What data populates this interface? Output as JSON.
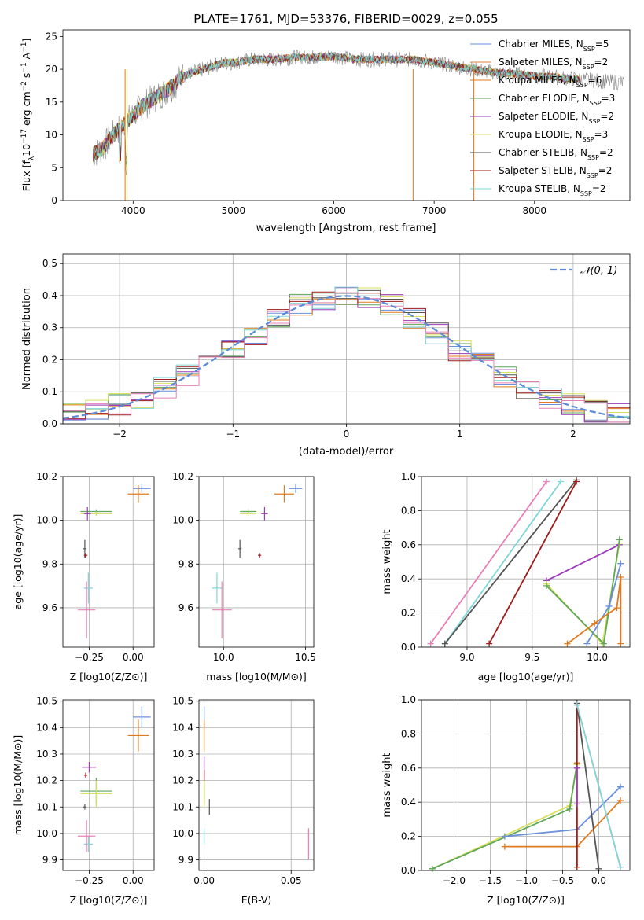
{
  "colors": {
    "chabrier_miles": "#6a8fdc",
    "salpeter_miles": "#e0803c",
    "kroupa_miles": "#e07a1f",
    "chabrier_elodie": "#5fa65a",
    "salpeter_elodie": "#9b3cb8",
    "kroupa_elodie": "#d8e060",
    "chabrier_stelib": "#555555",
    "salpeter_stelib": "#a01a1a",
    "kroupa_stelib": "#7fd6d6",
    "pink": "#e880b8",
    "grey_data": "#888888"
  },
  "chart_data": [
    {
      "id": "spectrum",
      "type": "line",
      "title": "PLATE=1761, MJD=53376, FIBERID=0029, z=0.055",
      "xlabel": "wavelength [Angstrom, rest frame]",
      "ylabel": "Flux [f_λ10^-17 erg cm^-2 s^-1 A^-1]",
      "xlim": [
        3300,
        8950
      ],
      "ylim": [
        0,
        26
      ],
      "xticks": [
        "4000",
        "5000",
        "6000",
        "7000",
        "8000"
      ],
      "yticks": [
        "0",
        "5",
        "10",
        "15",
        "20",
        "25"
      ],
      "envelope_x": [
        3600,
        3700,
        3800,
        3900,
        4000,
        4100,
        4200,
        4300,
        4400,
        4500,
        4600,
        4700,
        4800,
        4900,
        5000,
        5200,
        5400,
        5600,
        5800,
        6000,
        6200,
        6400,
        6600,
        6800,
        7000,
        7200,
        7400,
        7600,
        7800,
        8000,
        8200,
        8400,
        8600,
        8800
      ],
      "envelope_y": [
        7,
        8,
        10,
        11.5,
        13,
        14.5,
        15.5,
        16.5,
        17.5,
        19,
        19.5,
        20,
        20.5,
        21,
        21,
        21.5,
        21.5,
        21.8,
        21.8,
        22,
        21.5,
        21.5,
        21.5,
        21.5,
        21,
        20.5,
        20,
        19.5,
        19.3,
        19,
        18.8,
        18.5,
        18.3,
        18
      ],
      "legend": [
        {
          "label": "Chabrier MILES, N",
          "sub": "SSP",
          "n": "=5",
          "color": "#6a8fdc"
        },
        {
          "label": "Salpeter MILES, N",
          "sub": "SSP",
          "n": "=2",
          "color": "#e0803c"
        },
        {
          "label": "Kroupa MILES, N",
          "sub": "SSP",
          "n": "=6",
          "color": "#e07a1f"
        },
        {
          "label": "Chabrier ELODIE, N",
          "sub": "SSP",
          "n": "=3",
          "color": "#5fa65a"
        },
        {
          "label": "Salpeter ELODIE, N",
          "sub": "SSP",
          "n": "=2",
          "color": "#9b3cb8"
        },
        {
          "label": "Kroupa ELODIE, N",
          "sub": "SSP",
          "n": "=3",
          "color": "#d8e060"
        },
        {
          "label": "Chabrier STELIB, N",
          "sub": "SSP",
          "n": "=2",
          "color": "#555555"
        },
        {
          "label": "Salpeter STELIB, N",
          "sub": "SSP",
          "n": "=2",
          "color": "#a01a1a"
        },
        {
          "label": "Kroupa STELIB, N",
          "sub": "SSP",
          "n": "=2",
          "color": "#7fd6d6"
        }
      ]
    },
    {
      "id": "residuals",
      "type": "histogram",
      "xlabel": "(data-model)/error",
      "ylabel": "Normed distribution",
      "xlim": [
        -2.5,
        2.5
      ],
      "ylim": [
        0,
        0.53
      ],
      "xticks": [
        "−2",
        "−1",
        "0",
        "1",
        "2"
      ],
      "yticks": [
        "0.0",
        "0.1",
        "0.2",
        "0.3",
        "0.4",
        "0.5"
      ],
      "legend": "𝒩(0, 1)",
      "bin_edges": [
        -2.5,
        -2.3,
        -2.1,
        -1.9,
        -1.7,
        -1.5,
        -1.3,
        -1.1,
        -0.9,
        -0.7,
        -0.5,
        -0.3,
        -0.1,
        0.1,
        0.3,
        0.5,
        0.7,
        0.9,
        1.1,
        1.3,
        1.5,
        1.7,
        1.9,
        2.1,
        2.3,
        2.5
      ],
      "base_profile": [
        0.03,
        0.04,
        0.06,
        0.08,
        0.11,
        0.15,
        0.19,
        0.23,
        0.28,
        0.33,
        0.37,
        0.39,
        0.4,
        0.39,
        0.37,
        0.33,
        0.28,
        0.23,
        0.19,
        0.15,
        0.11,
        0.08,
        0.06,
        0.04,
        0.03
      ]
    },
    {
      "id": "age_vs_Z",
      "type": "scatter",
      "xlabel": "Z [log10(Z/Z⊙)]",
      "ylabel": "age [log10(age/yr)]",
      "xlim": [
        -0.4,
        0.12
      ],
      "ylim": [
        9.42,
        10.2
      ],
      "xticks": [
        "−0.25",
        "0.00"
      ],
      "yticks": [
        "9.6",
        "9.8",
        "10.0",
        "10.2"
      ],
      "points": [
        {
          "x": 0.05,
          "y": 10.145,
          "ex": 0.05,
          "ey": 0.02,
          "color": "#6a8fdc"
        },
        {
          "x": 0.03,
          "y": 10.12,
          "ex": 0.06,
          "ey": 0.04,
          "color": "#e07a1f"
        },
        {
          "x": -0.21,
          "y": 10.04,
          "ex": 0.09,
          "ey": 0.01,
          "color": "#5fa65a"
        },
        {
          "x": -0.21,
          "y": 10.03,
          "ex": 0.09,
          "ey": 0.01,
          "color": "#d8e060"
        },
        {
          "x": -0.26,
          "y": 10.03,
          "ex": 0.02,
          "ey": 0.03,
          "color": "#9b3cb8"
        },
        {
          "x": -0.275,
          "y": 9.87,
          "ex": 0.01,
          "ey": 0.04,
          "color": "#555555"
        },
        {
          "x": -0.27,
          "y": 9.84,
          "ex": 0.01,
          "ey": 0.01,
          "color": "#a01a1a"
        },
        {
          "x": -0.255,
          "y": 9.69,
          "ex": 0.025,
          "ey": 0.07,
          "color": "#7fd6d6"
        },
        {
          "x": -0.265,
          "y": 9.59,
          "ex": 0.05,
          "ey": 0.13,
          "color": "#e880b8"
        }
      ]
    },
    {
      "id": "age_vs_mass",
      "type": "scatter",
      "xlabel": "mass [log10(M/M⊙)]",
      "ylabel": "",
      "xlim": [
        9.85,
        10.55
      ],
      "ylim": [
        9.42,
        10.2
      ],
      "xticks": [
        "10.0",
        "10.5"
      ],
      "yticks": [
        "9.6",
        "9.8",
        "10.0",
        "10.2"
      ],
      "points": [
        {
          "x": 10.44,
          "y": 10.145,
          "ex": 0.04,
          "ey": 0.02,
          "color": "#6a8fdc"
        },
        {
          "x": 10.37,
          "y": 10.12,
          "ex": 0.06,
          "ey": 0.04,
          "color": "#e07a1f"
        },
        {
          "x": 10.15,
          "y": 10.04,
          "ex": 0.05,
          "ey": 0.01,
          "color": "#5fa65a"
        },
        {
          "x": 10.15,
          "y": 10.03,
          "ex": 0.05,
          "ey": 0.01,
          "color": "#d8e060"
        },
        {
          "x": 10.25,
          "y": 10.03,
          "ex": 0.02,
          "ey": 0.03,
          "color": "#9b3cb8"
        },
        {
          "x": 10.1,
          "y": 9.87,
          "ex": 0.01,
          "ey": 0.04,
          "color": "#555555"
        },
        {
          "x": 10.22,
          "y": 9.84,
          "ex": 0.01,
          "ey": 0.01,
          "color": "#a01a1a"
        },
        {
          "x": 9.96,
          "y": 9.69,
          "ex": 0.03,
          "ey": 0.07,
          "color": "#7fd6d6"
        },
        {
          "x": 9.99,
          "y": 9.59,
          "ex": 0.06,
          "ey": 0.13,
          "color": "#e880b8"
        }
      ]
    },
    {
      "id": "massweight_vs_age",
      "type": "line",
      "xlabel": "age [log10(age/yr)]",
      "ylabel": "mass weight",
      "xlim": [
        8.65,
        10.25
      ],
      "ylim": [
        0,
        1.0
      ],
      "xticks": [
        "9.0",
        "9.5",
        "10.0"
      ],
      "yticks": [
        "0.0",
        "0.2",
        "0.4",
        "0.6",
        "0.8",
        "1.0"
      ],
      "series": [
        {
          "color": "#e880b8",
          "x": [
            8.72,
            9.61
          ],
          "y": [
            0.02,
            0.97
          ]
        },
        {
          "color": "#7fd6d6",
          "x": [
            8.83,
            9.72
          ],
          "y": [
            0.02,
            0.97
          ]
        },
        {
          "color": "#555555",
          "x": [
            8.83,
            9.84
          ],
          "y": [
            0.02,
            0.98
          ]
        },
        {
          "color": "#a01a1a",
          "x": [
            9.17,
            9.84
          ],
          "y": [
            0.02,
            0.97
          ]
        },
        {
          "color": "#9b3cb8",
          "x": [
            9.61,
            10.17
          ],
          "y": [
            0.39,
            0.6
          ]
        },
        {
          "color": "#d8e060",
          "x": [
            9.61,
            10.04,
            10.17
          ],
          "y": [
            0.37,
            0.02,
            0.61
          ]
        },
        {
          "color": "#5fa65a",
          "x": [
            9.61,
            10.05,
            10.17
          ],
          "y": [
            0.36,
            0.02,
            0.63
          ]
        },
        {
          "color": "#6a8fdc",
          "x": [
            9.92,
            10.09,
            10.18
          ],
          "y": [
            0.02,
            0.24,
            0.49
          ]
        },
        {
          "color": "#e07a1f",
          "x": [
            9.77,
            9.98,
            10.15,
            10.18,
            10.18
          ],
          "y": [
            0.02,
            0.14,
            0.23,
            0.41,
            0.02
          ]
        }
      ]
    },
    {
      "id": "mass_vs_Z",
      "type": "scatter",
      "xlabel": "Z [log10(Z/Z⊙)]",
      "ylabel": "mass [log10(M/M⊙)]",
      "xlim": [
        -0.4,
        0.12
      ],
      "ylim": [
        9.86,
        10.505
      ],
      "xticks": [
        "−0.25",
        "0.00"
      ],
      "yticks": [
        "9.9",
        "10.0",
        "10.1",
        "10.2",
        "10.3",
        "10.4",
        "10.5"
      ],
      "points": [
        {
          "x": 0.05,
          "y": 10.44,
          "ex": 0.05,
          "ey": 0.04,
          "color": "#6a8fdc"
        },
        {
          "x": 0.03,
          "y": 10.37,
          "ex": 0.06,
          "ey": 0.06,
          "color": "#e07a1f"
        },
        {
          "x": -0.21,
          "y": 10.16,
          "ex": 0.09,
          "ey": 0.05,
          "color": "#5fa65a"
        },
        {
          "x": -0.21,
          "y": 10.15,
          "ex": 0.09,
          "ey": 0.05,
          "color": "#d8e060"
        },
        {
          "x": -0.25,
          "y": 10.25,
          "ex": 0.04,
          "ey": 0.02,
          "color": "#9b3cb8"
        },
        {
          "x": -0.275,
          "y": 10.1,
          "ex": 0.01,
          "ey": 0.01,
          "color": "#555555"
        },
        {
          "x": -0.27,
          "y": 10.22,
          "ex": 0.01,
          "ey": 0.01,
          "color": "#a01a1a"
        },
        {
          "x": -0.255,
          "y": 9.96,
          "ex": 0.025,
          "ey": 0.03,
          "color": "#7fd6d6"
        },
        {
          "x": -0.265,
          "y": 9.99,
          "ex": 0.05,
          "ey": 0.06,
          "color": "#e880b8"
        }
      ]
    },
    {
      "id": "mass_vs_ebv",
      "type": "scatter",
      "xlabel": "E(B-V)",
      "ylabel": "",
      "xlim": [
        -0.003,
        0.063
      ],
      "ylim": [
        9.86,
        10.505
      ],
      "xticks": [
        "0.00",
        "0.05"
      ],
      "yticks": [
        "9.9",
        "10.0",
        "10.1",
        "10.2",
        "10.3",
        "10.4",
        "10.5"
      ],
      "points": [
        {
          "x": 0.0,
          "y": 10.44,
          "ex": 0.0,
          "ey": 0.04,
          "color": "#6a8fdc"
        },
        {
          "x": 0.0,
          "y": 10.37,
          "ex": 0.0,
          "ey": 0.06,
          "color": "#e07a1f"
        },
        {
          "x": 0.0,
          "y": 10.16,
          "ex": 0.0,
          "ey": 0.05,
          "color": "#5fa65a"
        },
        {
          "x": 0.0,
          "y": 10.15,
          "ex": 0.0,
          "ey": 0.05,
          "color": "#d8e060"
        },
        {
          "x": 0.0,
          "y": 10.25,
          "ex": 0.0,
          "ey": 0.04,
          "color": "#9b3cb8"
        },
        {
          "x": 0.003,
          "y": 10.1,
          "ex": 0.0,
          "ey": 0.03,
          "color": "#555555"
        },
        {
          "x": 0.0,
          "y": 10.22,
          "ex": 0.0,
          "ey": 0.02,
          "color": "#a01a1a"
        },
        {
          "x": 0.0,
          "y": 9.99,
          "ex": 0.0,
          "ey": 0.03,
          "color": "#7fd6d6"
        },
        {
          "x": 0.06,
          "y": 9.96,
          "ex": 0.0,
          "ey": 0.06,
          "color": "#e880b8"
        }
      ]
    },
    {
      "id": "massweight_vs_Z",
      "type": "line",
      "xlabel": "Z [log10(Z/Z⊙)]",
      "ylabel": "mass weight",
      "xlim": [
        -2.45,
        0.43
      ],
      "ylim": [
        0,
        1.0
      ],
      "xticks": [
        "−2.0",
        "−1.5",
        "−1.0",
        "−0.5",
        "0.0"
      ],
      "yticks": [
        "0.0",
        "0.2",
        "0.4",
        "0.6",
        "0.8",
        "1.0"
      ],
      "series": [
        {
          "color": "#d8e060",
          "x": [
            -2.3,
            -0.4,
            -0.3
          ],
          "y": [
            0.01,
            0.38,
            0.62
          ]
        },
        {
          "color": "#5fa65a",
          "x": [
            -2.3,
            -0.4,
            -0.3
          ],
          "y": [
            0.01,
            0.36,
            0.63
          ]
        },
        {
          "color": "#6a8fdc",
          "x": [
            -1.3,
            -0.3,
            0.3
          ],
          "y": [
            0.2,
            0.24,
            0.49
          ]
        },
        {
          "color": "#e07a1f",
          "x": [
            -1.3,
            -0.3,
            0.3
          ],
          "y": [
            0.14,
            0.14,
            0.41
          ]
        },
        {
          "color": "#e07a1f",
          "x": [
            -0.3,
            -0.3
          ],
          "y": [
            0.02,
            0.63
          ]
        },
        {
          "color": "#555555",
          "x": [
            -0.3,
            0.0
          ],
          "y": [
            0.98,
            0.01
          ]
        },
        {
          "color": "#a01a1a",
          "x": [
            -0.3,
            -0.3
          ],
          "y": [
            0.02,
            0.97
          ]
        },
        {
          "color": "#9b3cb8",
          "x": [
            -0.3,
            -0.3
          ],
          "y": [
            0.39,
            0.6
          ]
        },
        {
          "color": "#e880b8",
          "x": [
            -0.3,
            0.3
          ],
          "y": [
            0.97,
            0.02
          ]
        },
        {
          "color": "#7fd6d6",
          "x": [
            -0.3,
            0.3
          ],
          "y": [
            0.97,
            0.02
          ]
        }
      ]
    }
  ]
}
